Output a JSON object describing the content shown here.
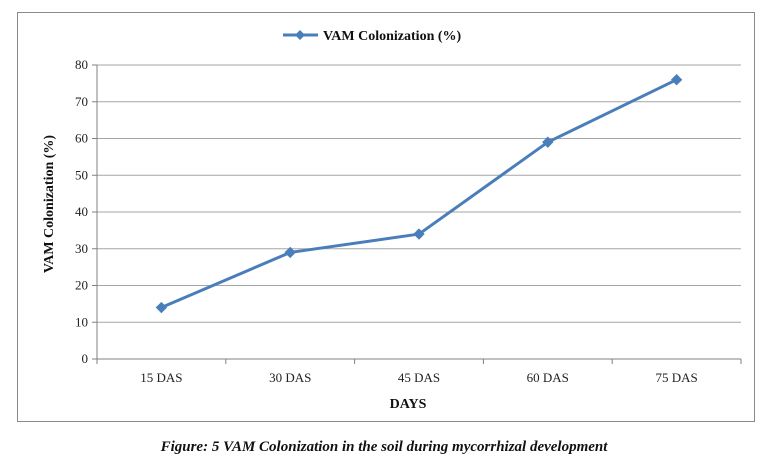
{
  "colors": {
    "series": "#4a7ebb",
    "grid": "#a6a6a6",
    "axis": "#808080"
  },
  "caption": "Figure: 5 VAM Colonization in the soil during mycorrhizal development",
  "chart_data": {
    "type": "line",
    "title": "",
    "xlabel": "DAYS",
    "ylabel": "VAM Colonization (%)",
    "categories": [
      "15 DAS",
      "30 DAS",
      "45 DAS",
      "60 DAS",
      "75 DAS"
    ],
    "series": [
      {
        "name": "VAM Colonization (%)",
        "values": [
          14,
          29,
          34,
          59,
          76
        ]
      }
    ],
    "ylim": [
      0,
      80
    ],
    "yticks": [
      0,
      10,
      20,
      30,
      40,
      50,
      60,
      70,
      80
    ],
    "grid": true,
    "legend": "top-center",
    "marker": "diamond"
  }
}
